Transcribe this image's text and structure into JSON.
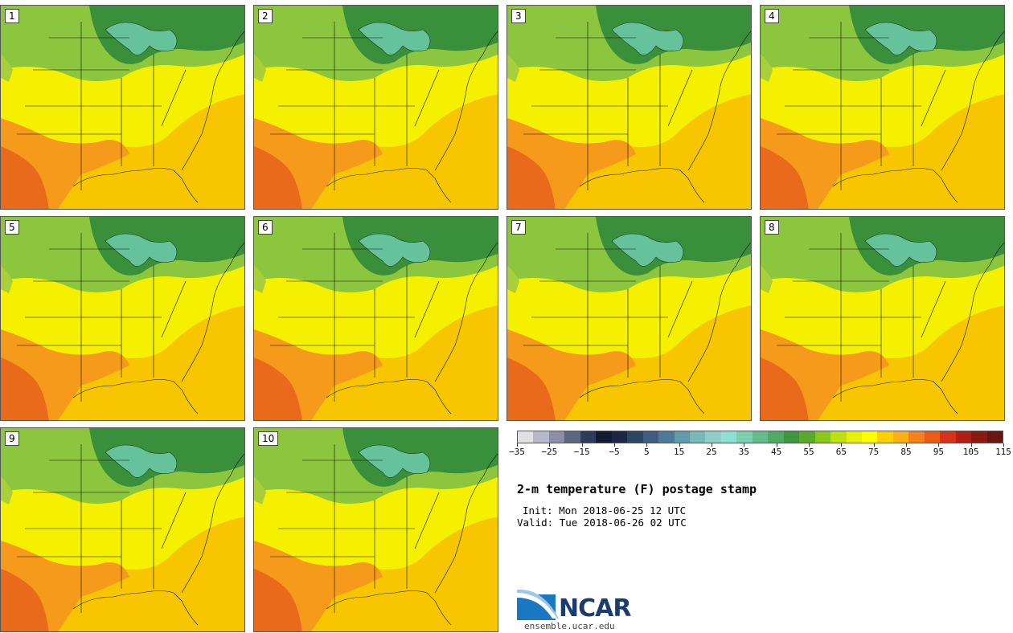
{
  "figure": {
    "title": "2-m temperature (F) postage stamp",
    "init": "Init: Mon 2018-06-25 12 UTC",
    "valid": "Valid: Tue 2018-06-26 02 UTC",
    "logo_text": "NCAR",
    "logo_url": "ensemble.ucar.edu"
  },
  "members": [
    "1",
    "2",
    "3",
    "4",
    "5",
    "6",
    "7",
    "8",
    "9",
    "10"
  ],
  "colorbar": {
    "unit": "F",
    "tick_labels": [
      "−35",
      "−25",
      "−15",
      "−5",
      "5",
      "15",
      "25",
      "35",
      "45",
      "55",
      "65",
      "75",
      "85",
      "95",
      "105",
      "115"
    ],
    "colors": [
      "#e0e0e6",
      "#b9b9c9",
      "#8a8ea6",
      "#5b6681",
      "#2e3c5c",
      "#131a33",
      "#1c2746",
      "#2d4463",
      "#3e5e80",
      "#4e7b99",
      "#619aaa",
      "#79b8b8",
      "#8fcfc7",
      "#8ee0d2",
      "#7bd0b0",
      "#66bd8b",
      "#4faa63",
      "#3e973f",
      "#58a92e",
      "#8bc61e",
      "#bde014",
      "#e6f00a",
      "#ffff00",
      "#ffd000",
      "#fbb015",
      "#f5811a",
      "#ec5a17",
      "#d8311b",
      "#b11f17",
      "#8a1a12",
      "#6a1610"
    ]
  },
  "colors": {
    "north": "#3a8f3a",
    "lakes": "#66c29a",
    "mid_green": "#8cc63f",
    "yellow": "#f5f000",
    "gold": "#f7c600",
    "orange": "#f59a1a",
    "hot": "#e86a1a"
  }
}
